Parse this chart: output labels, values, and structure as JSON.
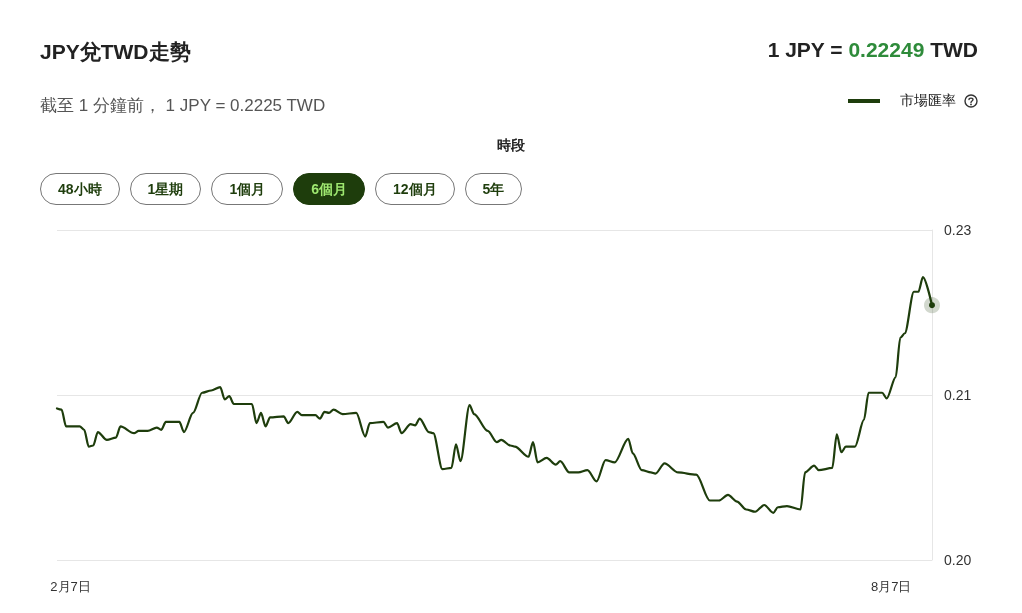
{
  "chart_data": {
    "type": "line",
    "title": "JPY兌TWD走勢",
    "subtitle": "截至 1 分鐘前， 1 JPY = 0.2225 TWD",
    "annotations": [
      "1 JPY = 0.22249 TWD",
      "時段",
      "48小時",
      "1星期",
      "1個月",
      "6個月",
      "12個月",
      "5年"
    ],
    "legend": "top right",
    "grid": "y",
    "xlim": [
      "--02-04",
      "--08-16"
    ],
    "xticks": [
      {
        "value": "--02-07",
        "label": "2月7日"
      },
      {
        "value": "--08-07",
        "label": "8月7日"
      }
    ],
    "ylim": [
      0.1998,
      0.2292
    ],
    "yticks": [
      {
        "value": 0.1998,
        "label": "0.20"
      },
      {
        "value": 0.2145,
        "label": "0.21"
      },
      {
        "value": 0.2292,
        "label": "0.23"
      }
    ],
    "x": [
      "--02-04",
      "--02-05",
      "--02-06",
      "--02-09",
      "--02-10",
      "--02-11",
      "--02-12",
      "--02-13",
      "--02-15",
      "--02-17",
      "--02-18",
      "--02-21",
      "--02-22",
      "--02-24",
      "--02-26",
      "--02-27",
      "--02-28",
      "--03-03",
      "--03-04",
      "--03-06",
      "--03-08",
      "--03-10",
      "--03-12",
      "--03-13",
      "--03-14",
      "--03-15",
      "--03-19",
      "--03-20",
      "--03-21",
      "--03-22",
      "--03-23",
      "--03-26",
      "--03-27",
      "--03-29",
      "--03-30",
      "--04-02",
      "--04-03",
      "--04-04",
      "--04-05",
      "--04-06",
      "--04-08",
      "--04-11",
      "--04-13",
      "--04-14",
      "--04-17",
      "--04-18",
      "--04-20",
      "--04-21",
      "--04-23",
      "--04-24",
      "--04-25",
      "--04-27",
      "--04-28",
      "--04-30",
      "--05-02",
      "--05-03",
      "--05-04",
      "--05-06",
      "--05-07",
      "--05-10",
      "--05-12",
      "--05-13",
      "--05-15",
      "--05-16",
      "--05-19",
      "--05-20",
      "--05-21",
      "--05-23",
      "--05-25",
      "--05-26",
      "--05-28",
      "--05-30",
      "--06-01",
      "--06-03",
      "--06-05",
      "--06-07",
      "--06-10",
      "--06-11",
      "--06-13",
      "--06-15",
      "--06-16",
      "--06-18",
      "--06-21",
      "--06-25",
      "--06-28",
      "--06-30",
      "--07-02",
      "--07-04",
      "--07-06",
      "--07-08",
      "--07-10",
      "--07-12",
      "--07-13",
      "--07-15",
      "--07-18",
      "--07-19",
      "--07-21",
      "--07-22",
      "--07-25",
      "--07-26",
      "--07-27",
      "--07-28",
      "--07-30",
      "--08-01",
      "--08-02",
      "--08-05",
      "--08-06",
      "--08-08",
      "--08-09",
      "--08-10",
      "--08-12",
      "--08-13",
      "--08-14",
      "--08-16"
    ],
    "series": [
      {
        "name": "市場匯率",
        "color": "#1e3d0c",
        "values": [
          0.2133,
          0.2132,
          0.2117,
          0.2117,
          0.2114,
          0.2099,
          0.21,
          0.2112,
          0.2105,
          0.2107,
          0.2117,
          0.2111,
          0.2113,
          0.2113,
          0.2116,
          0.2114,
          0.2121,
          0.2121,
          0.2112,
          0.2129,
          0.2147,
          0.2149,
          0.2152,
          0.2141,
          0.2144,
          0.2137,
          0.2137,
          0.212,
          0.2129,
          0.2117,
          0.2125,
          0.2126,
          0.212,
          0.213,
          0.2127,
          0.2127,
          0.2124,
          0.213,
          0.2129,
          0.2132,
          0.2128,
          0.2129,
          0.2108,
          0.212,
          0.2121,
          0.2116,
          0.212,
          0.2111,
          0.2119,
          0.2118,
          0.2124,
          0.2112,
          0.2111,
          0.2079,
          0.208,
          0.2101,
          0.2086,
          0.2136,
          0.2128,
          0.2113,
          0.2103,
          0.2105,
          0.21,
          0.2099,
          0.209,
          0.2103,
          0.2085,
          0.2089,
          0.2083,
          0.2086,
          0.2076,
          0.2076,
          0.2078,
          0.2068,
          0.2087,
          0.2085,
          0.2106,
          0.2093,
          0.2078,
          0.2076,
          0.2075,
          0.2084,
          0.2076,
          0.2074,
          0.2051,
          0.2051,
          0.2056,
          0.205,
          0.2043,
          0.2041,
          0.2047,
          0.204,
          0.2045,
          0.2046,
          0.2043,
          0.2076,
          0.2082,
          0.2078,
          0.208,
          0.211,
          0.2094,
          0.2099,
          0.2099,
          0.2123,
          0.2147,
          0.2147,
          0.2142,
          0.2161,
          0.2196,
          0.22,
          0.2237,
          0.2237,
          0.225,
          0.2225
        ]
      }
    ]
  }
}
